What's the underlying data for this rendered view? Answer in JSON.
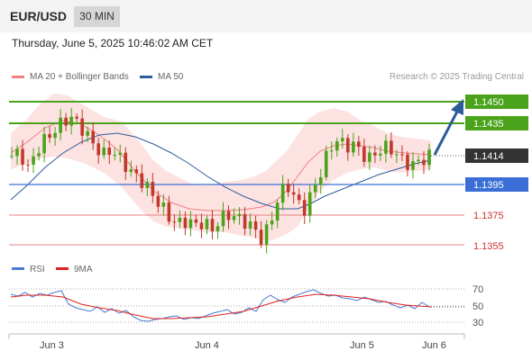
{
  "header": {
    "symbol": "EUR/USD",
    "timeframe": "30 MIN"
  },
  "datetime": "Thursday, June 5, 2025 10:46:02 AM CET",
  "legend": {
    "ma20": {
      "label": "MA 20 + Bollinger Bands",
      "color": "#f08080"
    },
    "ma50": {
      "label": "MA 50",
      "color": "#2e5c9a"
    }
  },
  "credit": "Research © 2025 Trading Central",
  "levels": [
    {
      "value": "1.1450",
      "kind": "resistance",
      "color": "#4aa31a"
    },
    {
      "value": "1.1435",
      "kind": "resistance",
      "color": "#4aa31a"
    },
    {
      "value": "1.1414",
      "kind": "current-price",
      "color": "#333333"
    },
    {
      "value": "1.1395",
      "kind": "pivot",
      "color": "#3b6fd6"
    },
    {
      "value": "1.1375",
      "kind": "support",
      "color": "#e05b5b"
    },
    {
      "value": "1.1355",
      "kind": "support",
      "color": "#e05b5b"
    }
  ],
  "rsi_legend": {
    "rsi": {
      "label": "RSI",
      "color": "#4a7bd1"
    },
    "ma9": {
      "label": "9MA",
      "color": "#e02020"
    }
  },
  "rsi_levels": [
    "70",
    "50",
    "30"
  ],
  "x_labels": [
    "Jun 3",
    "Jun 4",
    "Jun 5",
    "Jun 6"
  ],
  "colors": {
    "up": "#4aa31a",
    "down": "#c0392b",
    "band": "#fcdede",
    "arrow": "#2e5c9a"
  },
  "chart_data": {
    "type": "candlestick",
    "x_labels": [
      "Jun 3",
      "Jun 4",
      "Jun 5",
      "Jun 6"
    ],
    "price_levels": [
      1.145,
      1.1435,
      1.1414,
      1.1395,
      1.1375,
      1.1355
    ],
    "price_path_approx": [
      1.1414,
      1.1416,
      1.1405,
      1.1418,
      1.1425,
      1.143,
      1.1436,
      1.144,
      1.1435,
      1.1428,
      1.142,
      1.1415,
      1.1418,
      1.1412,
      1.1405,
      1.14,
      1.1395,
      1.1387,
      1.138,
      1.1372,
      1.1369,
      1.1371,
      1.1368,
      1.137,
      1.1365,
      1.1372,
      1.1375,
      1.1373,
      1.137,
      1.1366,
      1.1358,
      1.137,
      1.1388,
      1.1395,
      1.1385,
      1.1378,
      1.139,
      1.1403,
      1.1418,
      1.1425,
      1.142,
      1.1422,
      1.1415,
      1.1412,
      1.1418,
      1.142,
      1.1416,
      1.141,
      1.1408,
      1.1411,
      1.1414
    ],
    "rsi_axis": [
      30,
      50,
      70
    ]
  }
}
